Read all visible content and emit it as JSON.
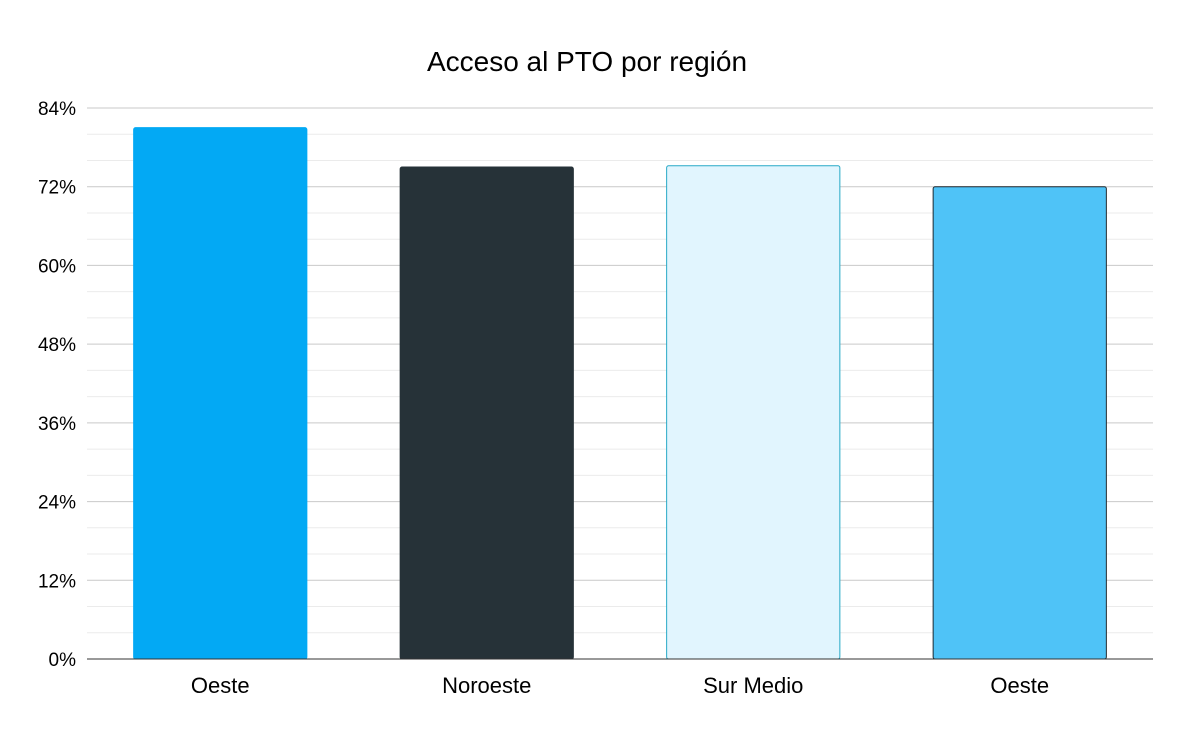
{
  "chart_data": {
    "type": "bar",
    "title": "Acceso al PTO por región",
    "xlabel": "",
    "ylabel": "",
    "categories": [
      "Oeste",
      "Noroeste",
      "Sur Medio",
      "Oeste"
    ],
    "values": [
      81,
      75,
      75.2,
      72
    ],
    "ylim": [
      0,
      84
    ],
    "yticks": [
      0,
      12,
      24,
      36,
      48,
      60,
      72,
      84
    ],
    "ytick_labels": [
      "0%",
      "12%",
      "24%",
      "36%",
      "48%",
      "60%",
      "72%",
      "84%"
    ],
    "grid": true,
    "legend": "none",
    "bar_colors": [
      "#03a9f4",
      "#263238",
      "#e1f5fe",
      "#4fc3f7"
    ],
    "bar_outline_colors": [
      "#03a9f4",
      "#263238",
      "#26a9c7",
      "#1e2a30"
    ]
  }
}
